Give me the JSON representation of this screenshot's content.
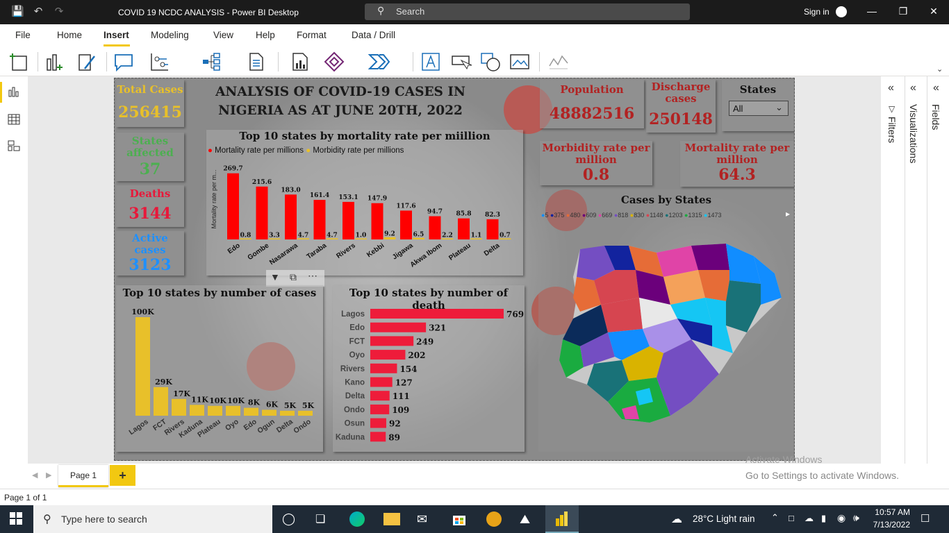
{
  "window": {
    "title": "COVID 19 NCDC ANALYSIS - Power BI Desktop",
    "search_placeholder": "Search",
    "sign_in": "Sign in"
  },
  "menu": {
    "items": [
      "File",
      "Home",
      "Insert",
      "Modeling",
      "View",
      "Help",
      "Format",
      "Data / Drill"
    ],
    "active": "Insert"
  },
  "report": {
    "title": "ANALYSIS OF COVID-19 CASES IN NIGERIA AS AT JUNE 20TH, 2022",
    "cards": {
      "total_cases": {
        "label": "Total Cases",
        "value": "256415"
      },
      "states_affected": {
        "label": "States affected",
        "value": "37"
      },
      "deaths": {
        "label": "Deaths",
        "value": "3144"
      },
      "active_cases": {
        "label": "Active cases",
        "value": "3123"
      },
      "population": {
        "label": "Population",
        "value": "48882516"
      },
      "discharge": {
        "label": "Discharge cases",
        "value": "250148"
      },
      "morbidity": {
        "label": "Morbidity rate per million",
        "value": "0.8"
      },
      "mortality": {
        "label": "Mortality rate per million",
        "value": "64.3"
      }
    },
    "slicer": {
      "label": "States",
      "value": "All"
    },
    "map": {
      "title": "Cases by States",
      "legend": [
        "5",
        "375",
        "480",
        "609",
        "669",
        "818",
        "830",
        "1148",
        "1203",
        "1315",
        "1473"
      ],
      "legend_colors": [
        "#118dff",
        "#12239e",
        "#e66c37",
        "#6b007b",
        "#e044a7",
        "#744ec2",
        "#d9b300",
        "#d64550",
        "#197278",
        "#1aab40",
        "#15c6f4"
      ]
    },
    "visual_icons": [
      "filter-icon",
      "focus-mode-icon",
      "more-options-icon"
    ]
  },
  "chart_data": [
    {
      "type": "bar",
      "title": "Top 10 states by mortality rate per miillion",
      "ylabel": "Mortality rate per m...",
      "categories": [
        "Edo",
        "Gombe",
        "Nasarawa",
        "Taraba",
        "Rivers",
        "Kebbi",
        "Jigawa",
        "Akwa Ibom",
        "Plateau",
        "Delta"
      ],
      "series": [
        {
          "name": "Mortality rate per millions",
          "color": "#ff0000",
          "values": [
            269.7,
            215.6,
            183.0,
            161.4,
            153.1,
            147.9,
            117.6,
            94.7,
            85.8,
            82.3
          ]
        },
        {
          "name": "Morbidity rate per millions",
          "color": "#e8c02a",
          "values": [
            0.8,
            3.3,
            4.7,
            4.7,
            1.0,
            9.2,
            6.5,
            2.2,
            1.1,
            0.7
          ]
        }
      ],
      "value_labels": {
        "mortality": [
          "269.7",
          "215.6",
          "183.0",
          "161.4",
          "153.1",
          "147.9",
          "117.6",
          "94.7",
          "85.8",
          "82.3"
        ],
        "morbidity": [
          "0.8",
          "3.3",
          "4.7",
          "4.7",
          "1.0",
          "9.2",
          "6.5",
          "2.2",
          "1.1",
          "0.7"
        ]
      },
      "legend_position": "top-left"
    },
    {
      "type": "bar",
      "title": "Top 10 states by number of cases",
      "categories": [
        "Lagos",
        "FCT",
        "Rivers",
        "Kaduna",
        "Plateau",
        "Oyo",
        "Edo",
        "Ogun",
        "Delta",
        "Ondo"
      ],
      "values": [
        100000,
        29000,
        17000,
        11000,
        10000,
        10000,
        8000,
        6000,
        5000,
        5000
      ],
      "labels": [
        "100K",
        "29K",
        "17K",
        "11K",
        "10K",
        "10K",
        "8K",
        "6K",
        "5K",
        "5K"
      ],
      "color": "#e8c02a"
    },
    {
      "type": "bar",
      "orientation": "horizontal",
      "title": "Top 10 states by number of death",
      "categories": [
        "Lagos",
        "Edo",
        "FCT",
        "Oyo",
        "Rivers",
        "Kano",
        "Delta",
        "Ondo",
        "Osun",
        "Kaduna"
      ],
      "values": [
        769,
        321,
        249,
        202,
        154,
        127,
        111,
        109,
        92,
        89
      ],
      "labels": [
        "769",
        "321",
        "249",
        "202",
        "154",
        "127",
        "111",
        "109",
        "92",
        "89"
      ],
      "color": "#ee1c3a"
    }
  ],
  "right_panes": {
    "filters": "Filters",
    "visualizations": "Visualizations",
    "fields": "Fields"
  },
  "pages": {
    "tab": "Page 1",
    "add": "+",
    "status": "Page 1 of 1"
  },
  "watermark": {
    "line1": "Activate Windows",
    "line2": "Go to Settings to activate Windows."
  },
  "taskbar": {
    "search_placeholder": "Type here to search",
    "weather": "28°C  Light rain",
    "time": "10:57 AM",
    "date": "7/13/2022"
  }
}
